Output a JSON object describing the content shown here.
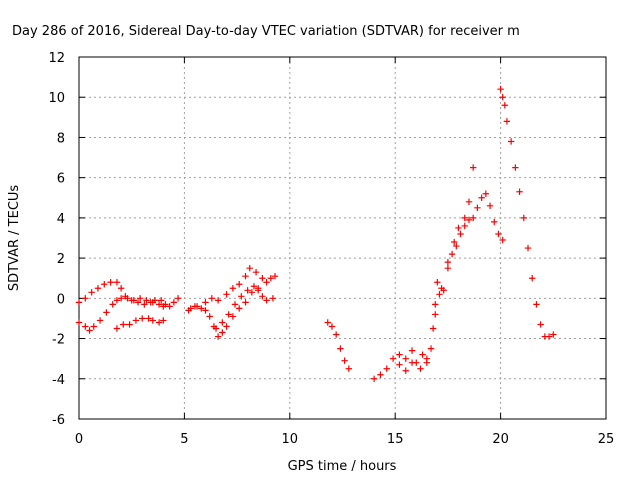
{
  "chart_data": {
    "type": "scatter",
    "title": "Day 286 of 2016, Sidereal Day-to-day VTEC variation (SDTVAR) for receiver m",
    "xlabel": "GPS time / hours",
    "ylabel": "SDTVAR / TECUs",
    "xlim": [
      0,
      25
    ],
    "ylim": [
      -6,
      12
    ],
    "x_ticks": [
      "0",
      "5",
      "10",
      "15",
      "20",
      "25"
    ],
    "y_ticks": [
      "-6",
      "-4",
      "-2",
      "0",
      "2",
      "4",
      "6",
      "8",
      "10",
      "12"
    ],
    "grid": true,
    "marker": "+",
    "color": "#ff0000",
    "series": [
      {
        "points": [
          [
            0.0,
            -0.2
          ],
          [
            0.3,
            0.0
          ],
          [
            0.6,
            0.3
          ],
          [
            0.9,
            0.5
          ],
          [
            1.2,
            0.7
          ],
          [
            1.5,
            0.8
          ],
          [
            1.8,
            0.8
          ],
          [
            2.0,
            0.5
          ],
          [
            2.2,
            0.1
          ],
          [
            2.5,
            -0.1
          ],
          [
            2.8,
            -0.2
          ],
          [
            3.1,
            -0.3
          ],
          [
            3.4,
            -0.2
          ],
          [
            3.6,
            -0.1
          ],
          [
            3.9,
            -0.1
          ],
          [
            4.1,
            -0.3
          ],
          [
            4.3,
            -0.4
          ],
          [
            4.5,
            -0.2
          ],
          [
            4.7,
            0.0
          ],
          [
            0.0,
            -1.2
          ],
          [
            0.3,
            -1.4
          ],
          [
            0.5,
            -1.6
          ],
          [
            0.7,
            -1.4
          ],
          [
            1.0,
            -1.1
          ],
          [
            1.3,
            -0.7
          ],
          [
            1.6,
            -0.3
          ],
          [
            1.8,
            -0.1
          ],
          [
            2.0,
            0.0
          ],
          [
            2.3,
            0.0
          ],
          [
            2.6,
            -0.1
          ],
          [
            2.9,
            0.0
          ],
          [
            3.2,
            -0.1
          ],
          [
            3.5,
            -0.2
          ],
          [
            3.8,
            -0.3
          ],
          [
            4.0,
            -0.4
          ],
          [
            1.8,
            -1.5
          ],
          [
            2.1,
            -1.3
          ],
          [
            2.4,
            -1.3
          ],
          [
            2.7,
            -1.1
          ],
          [
            3.0,
            -1.0
          ],
          [
            3.3,
            -1.0
          ],
          [
            3.5,
            -1.1
          ],
          [
            3.8,
            -1.2
          ],
          [
            4.0,
            -1.1
          ],
          [
            5.2,
            -0.6
          ],
          [
            5.5,
            -0.4
          ],
          [
            5.8,
            -0.5
          ],
          [
            6.0,
            -0.6
          ],
          [
            6.2,
            -0.9
          ],
          [
            6.4,
            -1.4
          ],
          [
            6.6,
            -1.9
          ],
          [
            6.8,
            -1.7
          ],
          [
            7.0,
            -1.4
          ],
          [
            7.3,
            -0.9
          ],
          [
            7.6,
            -0.5
          ],
          [
            7.9,
            -0.2
          ],
          [
            8.2,
            0.3
          ],
          [
            8.5,
            0.4
          ],
          [
            8.7,
            0.1
          ],
          [
            8.9,
            -0.1
          ],
          [
            9.2,
            0.0
          ],
          [
            5.3,
            -0.5
          ],
          [
            5.6,
            -0.4
          ],
          [
            6.0,
            -0.2
          ],
          [
            6.3,
            0.0
          ],
          [
            6.6,
            -0.1
          ],
          [
            7.0,
            0.2
          ],
          [
            7.3,
            0.5
          ],
          [
            7.6,
            0.7
          ],
          [
            7.9,
            1.1
          ],
          [
            8.1,
            1.5
          ],
          [
            8.4,
            1.3
          ],
          [
            8.7,
            1.0
          ],
          [
            8.9,
            0.8
          ],
          [
            9.1,
            1.0
          ],
          [
            9.3,
            1.1
          ],
          [
            6.5,
            -1.5
          ],
          [
            6.8,
            -1.2
          ],
          [
            7.1,
            -0.8
          ],
          [
            7.4,
            -0.3
          ],
          [
            7.7,
            0.1
          ],
          [
            8.0,
            0.4
          ],
          [
            8.3,
            0.6
          ],
          [
            8.5,
            0.5
          ],
          [
            11.8,
            -1.2
          ],
          [
            12.0,
            -1.4
          ],
          [
            12.2,
            -1.8
          ],
          [
            12.4,
            -2.5
          ],
          [
            12.6,
            -3.1
          ],
          [
            12.8,
            -3.5
          ],
          [
            14.0,
            -4.0
          ],
          [
            14.3,
            -3.8
          ],
          [
            14.6,
            -3.5
          ],
          [
            14.9,
            -3.0
          ],
          [
            15.2,
            -2.8
          ],
          [
            15.5,
            -3.0
          ],
          [
            15.8,
            -2.6
          ],
          [
            16.0,
            -3.2
          ],
          [
            16.3,
            -2.8
          ],
          [
            16.5,
            -3.0
          ],
          [
            16.8,
            -1.5
          ],
          [
            16.9,
            -0.3
          ],
          [
            17.1,
            0.2
          ],
          [
            17.3,
            0.4
          ],
          [
            17.5,
            1.5
          ],
          [
            17.7,
            2.2
          ],
          [
            17.9,
            2.6
          ],
          [
            18.1,
            3.2
          ],
          [
            18.3,
            3.6
          ],
          [
            18.5,
            3.9
          ],
          [
            18.7,
            4.0
          ],
          [
            18.9,
            4.5
          ],
          [
            19.1,
            5.0
          ],
          [
            19.3,
            5.2
          ],
          [
            19.5,
            4.6
          ],
          [
            19.7,
            3.8
          ],
          [
            19.9,
            3.2
          ],
          [
            20.1,
            2.9
          ],
          [
            15.2,
            -3.3
          ],
          [
            15.5,
            -3.6
          ],
          [
            15.8,
            -3.2
          ],
          [
            16.2,
            -3.5
          ],
          [
            16.5,
            -3.2
          ],
          [
            16.7,
            -2.5
          ],
          [
            16.9,
            -0.8
          ],
          [
            17.0,
            0.8
          ],
          [
            17.2,
            0.5
          ],
          [
            17.5,
            1.8
          ],
          [
            17.8,
            2.8
          ],
          [
            18.0,
            3.5
          ],
          [
            18.3,
            4.0
          ],
          [
            18.5,
            4.8
          ],
          [
            18.7,
            6.5
          ],
          [
            20.0,
            10.4
          ],
          [
            20.1,
            10.0
          ],
          [
            20.2,
            9.6
          ],
          [
            20.3,
            8.8
          ],
          [
            20.5,
            7.8
          ],
          [
            20.7,
            6.5
          ],
          [
            20.9,
            5.3
          ],
          [
            21.1,
            4.0
          ],
          [
            21.3,
            2.5
          ],
          [
            21.5,
            1.0
          ],
          [
            21.7,
            -0.3
          ],
          [
            21.9,
            -1.3
          ],
          [
            22.1,
            -1.9
          ],
          [
            22.3,
            -1.9
          ],
          [
            22.5,
            -1.8
          ]
        ]
      }
    ]
  }
}
